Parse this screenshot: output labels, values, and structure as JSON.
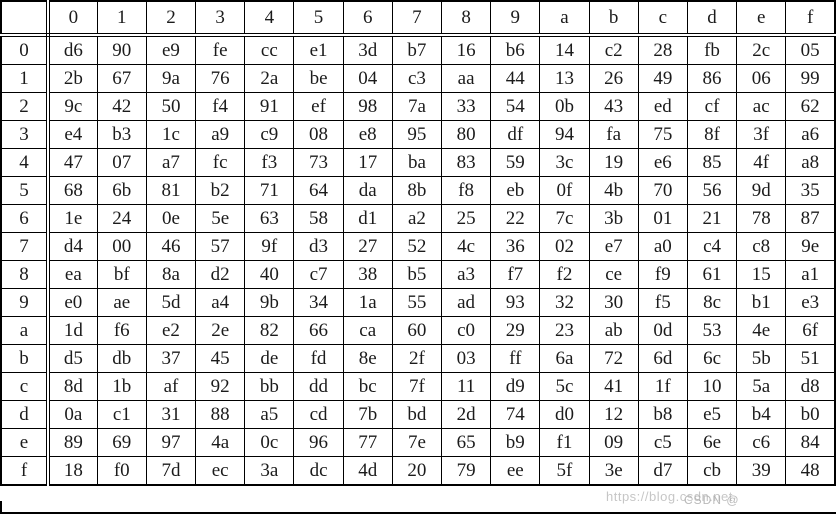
{
  "colors": {
    "background": "#ffffff",
    "border": "#000000",
    "text": "#1b1b1b",
    "watermark": "#bdbdbd"
  },
  "table": {
    "corner_label": "",
    "col_headers": [
      "0",
      "1",
      "2",
      "3",
      "4",
      "5",
      "6",
      "7",
      "8",
      "9",
      "a",
      "b",
      "c",
      "d",
      "e",
      "f"
    ],
    "row_headers": [
      "0",
      "1",
      "2",
      "3",
      "4",
      "5",
      "6",
      "7",
      "8",
      "9",
      "a",
      "b",
      "c",
      "d",
      "e",
      "f"
    ],
    "rows": [
      [
        "d6",
        "90",
        "e9",
        "fe",
        "cc",
        "e1",
        "3d",
        "b7",
        "16",
        "b6",
        "14",
        "c2",
        "28",
        "fb",
        "2c",
        "05"
      ],
      [
        "2b",
        "67",
        "9a",
        "76",
        "2a",
        "be",
        "04",
        "c3",
        "aa",
        "44",
        "13",
        "26",
        "49",
        "86",
        "06",
        "99"
      ],
      [
        "9c",
        "42",
        "50",
        "f4",
        "91",
        "ef",
        "98",
        "7a",
        "33",
        "54",
        "0b",
        "43",
        "ed",
        "cf",
        "ac",
        "62"
      ],
      [
        "e4",
        "b3",
        "1c",
        "a9",
        "c9",
        "08",
        "e8",
        "95",
        "80",
        "df",
        "94",
        "fa",
        "75",
        "8f",
        "3f",
        "a6"
      ],
      [
        "47",
        "07",
        "a7",
        "fc",
        "f3",
        "73",
        "17",
        "ba",
        "83",
        "59",
        "3c",
        "19",
        "e6",
        "85",
        "4f",
        "a8"
      ],
      [
        "68",
        "6b",
        "81",
        "b2",
        "71",
        "64",
        "da",
        "8b",
        "f8",
        "eb",
        "0f",
        "4b",
        "70",
        "56",
        "9d",
        "35"
      ],
      [
        "1e",
        "24",
        "0e",
        "5e",
        "63",
        "58",
        "d1",
        "a2",
        "25",
        "22",
        "7c",
        "3b",
        "01",
        "21",
        "78",
        "87"
      ],
      [
        "d4",
        "00",
        "46",
        "57",
        "9f",
        "d3",
        "27",
        "52",
        "4c",
        "36",
        "02",
        "e7",
        "a0",
        "c4",
        "c8",
        "9e"
      ],
      [
        "ea",
        "bf",
        "8a",
        "d2",
        "40",
        "c7",
        "38",
        "b5",
        "a3",
        "f7",
        "f2",
        "ce",
        "f9",
        "61",
        "15",
        "a1"
      ],
      [
        "e0",
        "ae",
        "5d",
        "a4",
        "9b",
        "34",
        "1a",
        "55",
        "ad",
        "93",
        "32",
        "30",
        "f5",
        "8c",
        "b1",
        "e3"
      ],
      [
        "1d",
        "f6",
        "e2",
        "2e",
        "82",
        "66",
        "ca",
        "60",
        "c0",
        "29",
        "23",
        "ab",
        "0d",
        "53",
        "4e",
        "6f"
      ],
      [
        "d5",
        "db",
        "37",
        "45",
        "de",
        "fd",
        "8e",
        "2f",
        "03",
        "ff",
        "6a",
        "72",
        "6d",
        "6c",
        "5b",
        "51"
      ],
      [
        "8d",
        "1b",
        "af",
        "92",
        "bb",
        "dd",
        "bc",
        "7f",
        "11",
        "d9",
        "5c",
        "41",
        "1f",
        "10",
        "5a",
        "d8"
      ],
      [
        "0a",
        "c1",
        "31",
        "88",
        "a5",
        "cd",
        "7b",
        "bd",
        "2d",
        "74",
        "d0",
        "12",
        "b8",
        "e5",
        "b4",
        "b0"
      ],
      [
        "89",
        "69",
        "97",
        "4a",
        "0c",
        "96",
        "77",
        "7e",
        "65",
        "b9",
        "f1",
        "09",
        "c5",
        "6e",
        "c6",
        "84"
      ],
      [
        "18",
        "f0",
        "7d",
        "ec",
        "3a",
        "dc",
        "4d",
        "20",
        "79",
        "ee",
        "5f",
        "3e",
        "d7",
        "cb",
        "39",
        "48"
      ]
    ]
  },
  "watermark": {
    "url_text": "https://blog.csdn.net",
    "overlay_text": "CSDN @"
  }
}
